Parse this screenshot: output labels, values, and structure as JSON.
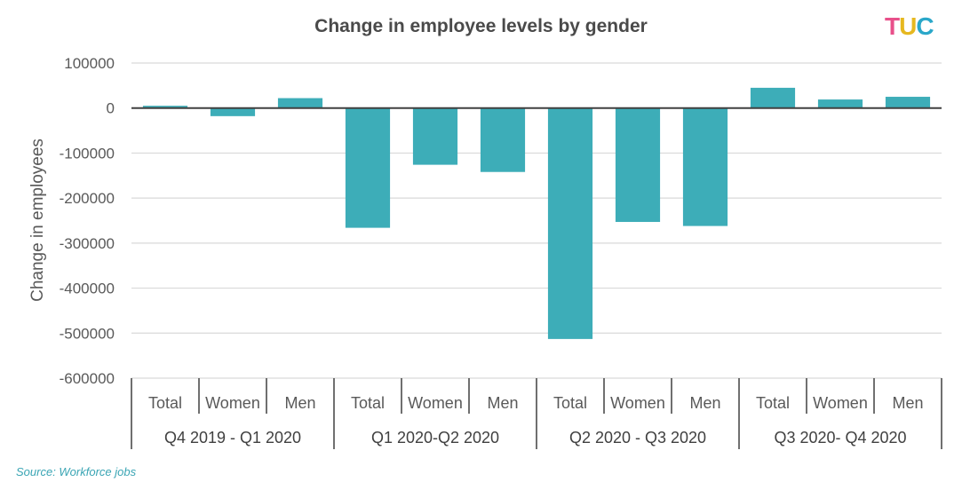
{
  "chart_data": {
    "type": "bar",
    "title": "Change in employee levels by gender",
    "ylabel": "Change in employees",
    "xlabel": "",
    "ylim": [
      -600000,
      100000
    ],
    "yticks": [
      100000,
      0,
      -100000,
      -200000,
      -300000,
      -400000,
      -500000,
      -600000
    ],
    "ytick_labels": [
      "100000",
      "0",
      "-100000",
      "-200000",
      "-300000",
      "-400000",
      "-500000",
      "-600000"
    ],
    "grid": true,
    "groups": [
      {
        "label": "Q4 2019 - Q1 2020",
        "categories": [
          "Total",
          "Women",
          "Men"
        ],
        "values": [
          5000,
          -18000,
          22000
        ]
      },
      {
        "label": "Q1 2020-Q2 2020",
        "categories": [
          "Total",
          "Women",
          "Men"
        ],
        "values": [
          -266000,
          -126000,
          -142000
        ]
      },
      {
        "label": "Q2 2020 - Q3 2020",
        "categories": [
          "Total",
          "Women",
          "Men"
        ],
        "values": [
          -513000,
          -253000,
          -262000
        ]
      },
      {
        "label": "Q3 2020- Q4 2020",
        "categories": [
          "Total",
          "Women",
          "Men"
        ],
        "values": [
          45000,
          19000,
          25000
        ]
      }
    ],
    "bar_color": "#3dadb8"
  },
  "logo": {
    "letters": [
      "T",
      "U",
      "C"
    ],
    "colors": [
      "#e8508a",
      "#e6b820",
      "#2aa7c9"
    ]
  },
  "source_text": "Source: Workforce jobs",
  "source_color": "#3aa5b4"
}
